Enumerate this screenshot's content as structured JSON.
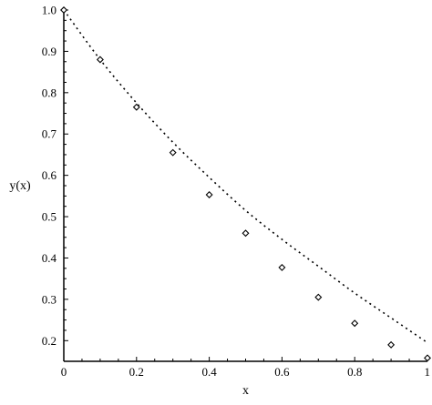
{
  "chart_data": {
    "type": "scatter",
    "title": "",
    "xlabel": "x",
    "ylabel": "y(x)",
    "xlim": [
      0,
      1
    ],
    "ylim": [
      0.15,
      1.0
    ],
    "x_ticks": [
      "0",
      "0.2",
      "0.4",
      "0.6",
      "0.8",
      "1"
    ],
    "y_ticks": [
      "0.2",
      "0.3",
      "0.4",
      "0.5",
      "0.6",
      "0.7",
      "0.8",
      "0.9",
      "1.0"
    ],
    "grid": false,
    "legend": "none",
    "series": [
      {
        "style": "dotted-line",
        "x": [
          0.0,
          0.1,
          0.2,
          0.3,
          0.4,
          0.5,
          0.6,
          0.7,
          0.8,
          0.9,
          1.0
        ],
        "y": [
          1.0,
          0.88,
          0.775,
          0.68,
          0.595,
          0.515,
          0.445,
          0.38,
          0.315,
          0.255,
          0.195
        ]
      },
      {
        "style": "diamond-markers",
        "x": [
          0.0,
          0.1,
          0.2,
          0.3,
          0.4,
          0.5,
          0.6,
          0.7,
          0.8,
          0.9,
          1.0
        ],
        "y": [
          1.0,
          0.88,
          0.765,
          0.655,
          0.553,
          0.46,
          0.377,
          0.305,
          0.242,
          0.19,
          0.158
        ]
      }
    ]
  }
}
